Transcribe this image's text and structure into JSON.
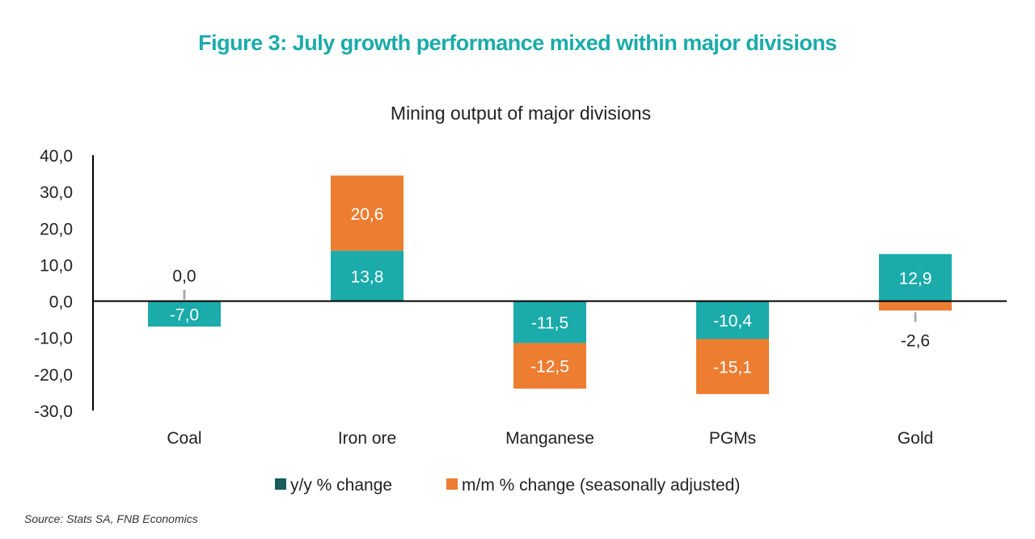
{
  "title": "Figure 3: July growth performance mixed within major divisions",
  "source": "Source: Stats SA, FNB Economics",
  "colors": {
    "yy_bar": "#1aabaa",
    "yy_legend": "#1a5c5a",
    "mm": "#ed7d31"
  },
  "chart_data": {
    "type": "bar",
    "stacked": true,
    "title": "Mining output of major divisions",
    "categories": [
      "Coal",
      "Iron ore",
      "Manganese",
      "PGMs",
      "Gold"
    ],
    "series": [
      {
        "name": "y/y % change",
        "values": [
          -7.0,
          13.8,
          -11.5,
          -10.4,
          12.9
        ],
        "labels": [
          "-7,0",
          "13,8",
          "-11,5",
          "-10,4",
          "12,9"
        ]
      },
      {
        "name": "m/m % change (seasonally adjusted)",
        "values": [
          0.0,
          20.6,
          -12.5,
          -15.1,
          -2.6
        ],
        "labels": [
          "0,0",
          "20,6",
          "-12,5",
          "-15,1",
          "-2,6"
        ]
      }
    ],
    "ylim": [
      -30,
      40
    ],
    "yticks": [
      "-30,0",
      "-20,0",
      "-10,0",
      "0,0",
      "10,0",
      "20,0",
      "30,0",
      "40,0"
    ],
    "grid": false,
    "legend": "bottom"
  }
}
